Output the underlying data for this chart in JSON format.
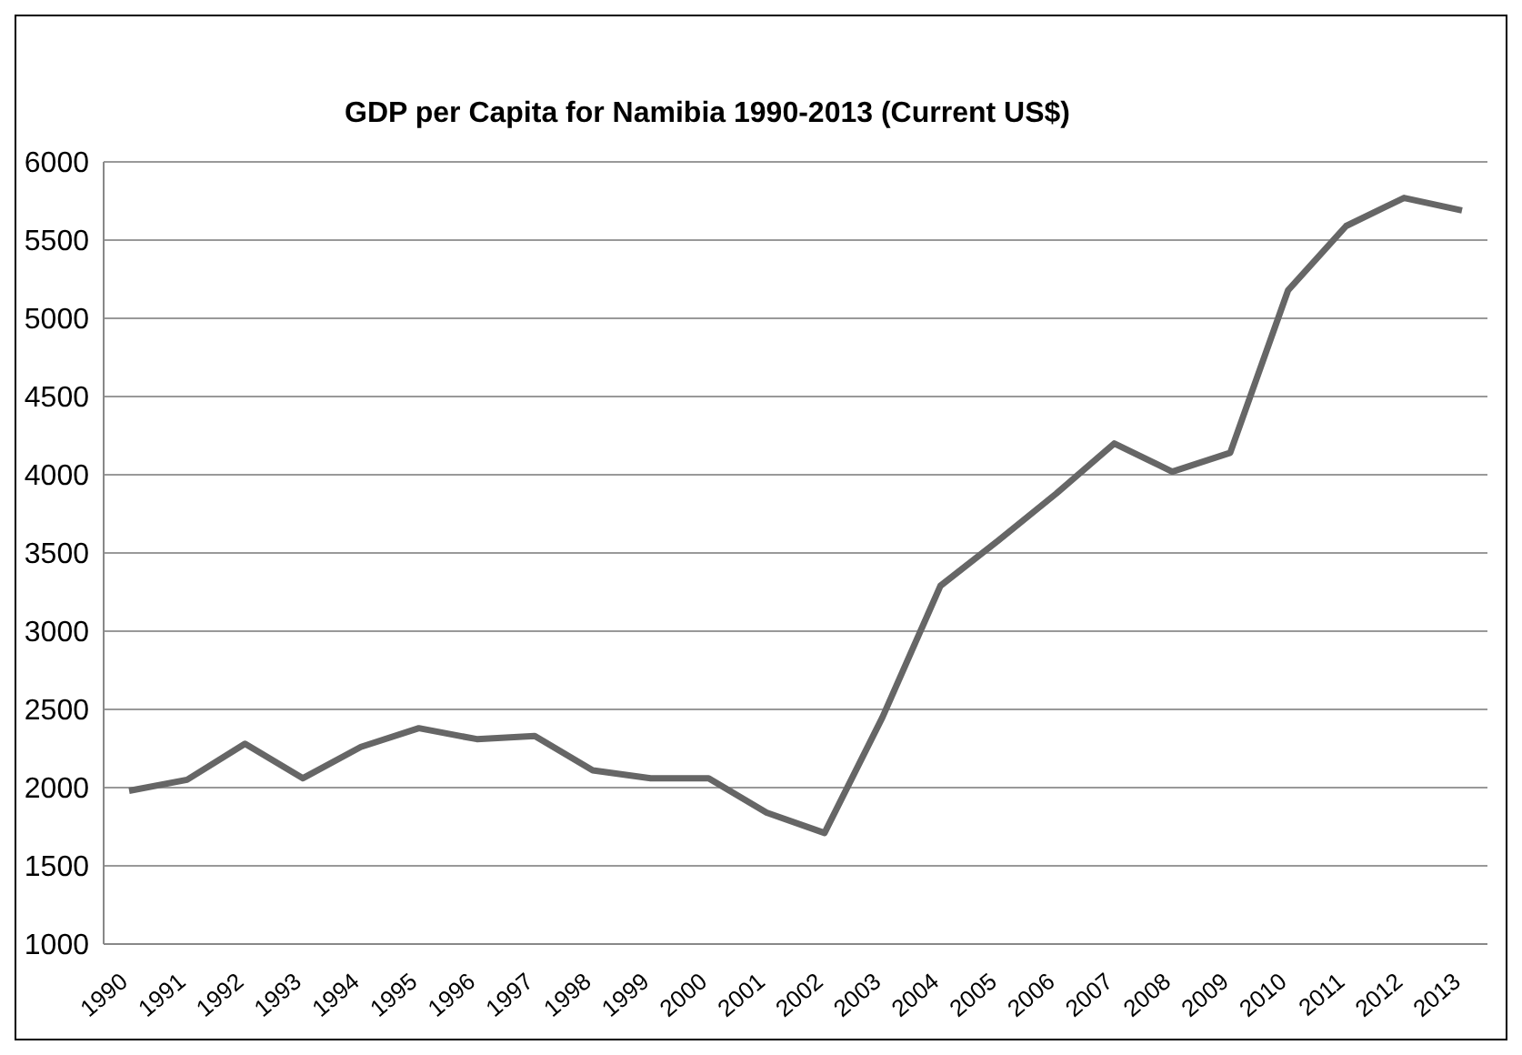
{
  "chart_data": {
    "type": "line",
    "title": "GDP per Capita for Namibia 1990-2013 (Current US$)",
    "categories": [
      "1990",
      "1991",
      "1992",
      "1993",
      "1994",
      "1995",
      "1996",
      "1997",
      "1998",
      "1999",
      "2000",
      "2001",
      "2002",
      "2003",
      "2004",
      "2005",
      "2006",
      "2007",
      "2008",
      "2009",
      "2010",
      "2011",
      "2012",
      "2013"
    ],
    "series": [
      {
        "color": "#666666",
        "values": [
          1980,
          2050,
          2280,
          2060,
          2260,
          2380,
          2310,
          2330,
          2110,
          2060,
          2060,
          1840,
          1710,
          2450,
          3290,
          3580,
          3880,
          4200,
          4020,
          4140,
          5180,
          5590,
          5770,
          5690
        ]
      }
    ],
    "ylim": [
      1000,
      6000
    ],
    "yticks": [
      1000,
      1500,
      2000,
      2500,
      3000,
      3500,
      4000,
      4500,
      5000,
      5500,
      6000
    ],
    "grid": "y",
    "marker": "none",
    "line_style": "solid"
  }
}
